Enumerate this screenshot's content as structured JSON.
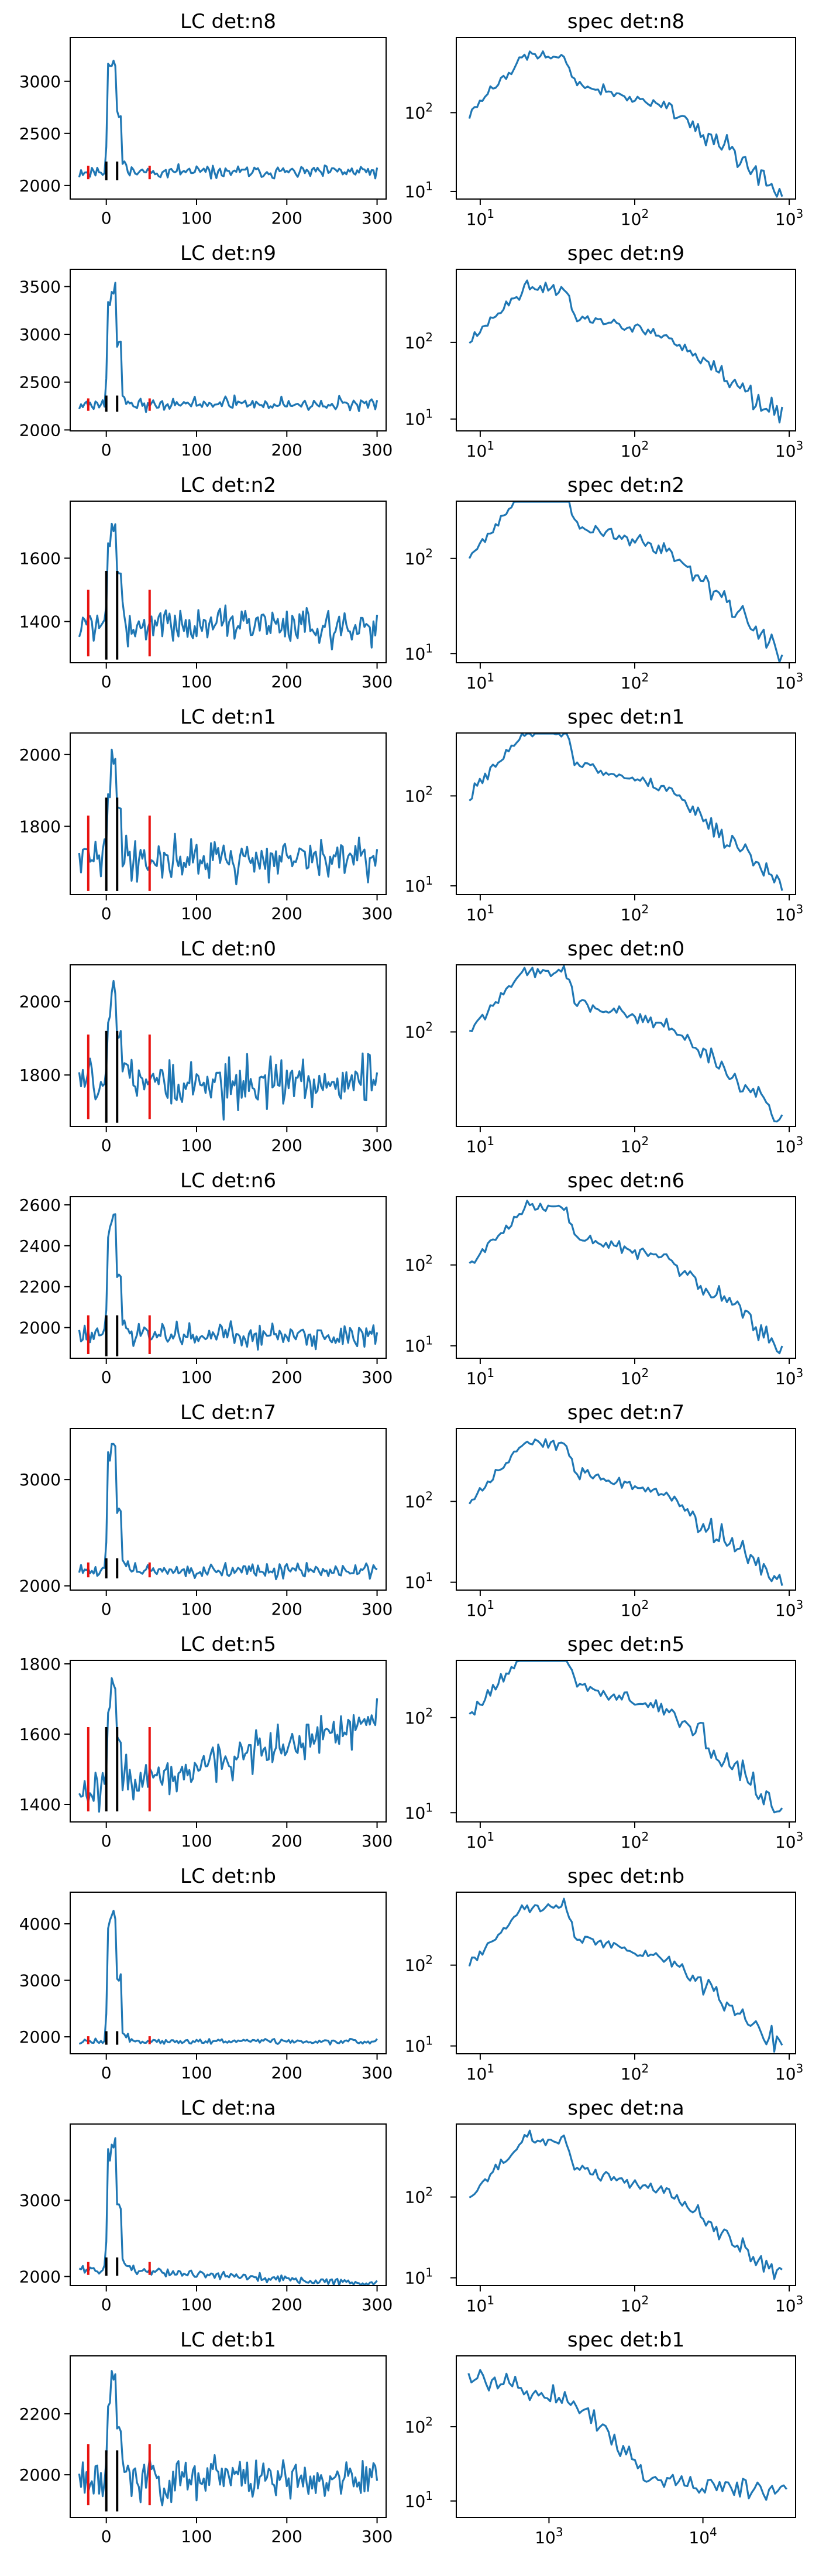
{
  "chart_data": [
    {
      "type": "line",
      "title": "LC det:n8",
      "scale": "linear",
      "xlim": [
        -40,
        310
      ],
      "ylim": [
        1870,
        3420
      ],
      "xticks": [
        0,
        100,
        200,
        300
      ],
      "yticks": [
        2000,
        2500,
        3000
      ],
      "baseline": 2130,
      "noise": 40,
      "peak": 3320,
      "peak2": 3250,
      "marks": [
        {
          "t": -20,
          "c": "red",
          "y0": 2060,
          "y1": 2190
        },
        {
          "t": 0,
          "c": "black",
          "y0": 2050,
          "y1": 2230
        },
        {
          "t": 12,
          "c": "black",
          "y0": 2050,
          "y1": 2230
        },
        {
          "t": 48,
          "c": "red",
          "y0": 2060,
          "y1": 2190
        }
      ],
      "seed": 11
    },
    {
      "type": "line",
      "title": "spec det:n8",
      "scale": "log",
      "xlim": [
        7,
        1100
      ],
      "ylim": [
        8,
        900
      ],
      "xticks": [
        10,
        100,
        1000
      ],
      "yticks": [
        10,
        100
      ],
      "shape": "nai",
      "seed": 12
    },
    {
      "type": "line",
      "title": "LC det:n9",
      "scale": "linear",
      "xlim": [
        -40,
        310
      ],
      "ylim": [
        1990,
        3680
      ],
      "xticks": [
        0,
        100,
        200,
        300
      ],
      "yticks": [
        2000,
        2500,
        3000,
        3500
      ],
      "baseline": 2270,
      "noise": 45,
      "peak": 3580,
      "peak2": 3480,
      "marks": [
        {
          "t": -20,
          "c": "red",
          "y0": 2200,
          "y1": 2330
        },
        {
          "t": 0,
          "c": "black",
          "y0": 2190,
          "y1": 2360
        },
        {
          "t": 12,
          "c": "black",
          "y0": 2190,
          "y1": 2360
        },
        {
          "t": 48,
          "c": "red",
          "y0": 2200,
          "y1": 2330
        }
      ],
      "seed": 21
    },
    {
      "type": "line",
      "title": "spec det:n9",
      "scale": "log",
      "xlim": [
        7,
        1100
      ],
      "ylim": [
        7,
        900
      ],
      "xticks": [
        10,
        100,
        1000
      ],
      "yticks": [
        10,
        100
      ],
      "shape": "nai",
      "seed": 22
    },
    {
      "type": "line",
      "title": "LC det:n2",
      "scale": "linear",
      "xlim": [
        -40,
        310
      ],
      "ylim": [
        1270,
        1780
      ],
      "xticks": [
        0,
        100,
        200,
        300
      ],
      "yticks": [
        1400,
        1600
      ],
      "baseline": 1390,
      "noise": 40,
      "peak": 1730,
      "peak2": 1650,
      "marks": [
        {
          "t": -20,
          "c": "red",
          "y0": 1290,
          "y1": 1500
        },
        {
          "t": 0,
          "c": "black",
          "y0": 1280,
          "y1": 1560
        },
        {
          "t": 12,
          "c": "black",
          "y0": 1280,
          "y1": 1560
        },
        {
          "t": 48,
          "c": "red",
          "y0": 1290,
          "y1": 1500
        }
      ],
      "seed": 31
    },
    {
      "type": "line",
      "title": "spec det:n2",
      "scale": "log",
      "xlim": [
        7,
        1100
      ],
      "ylim": [
        8,
        400
      ],
      "xticks": [
        10,
        100,
        1000
      ],
      "yticks": [
        10,
        100
      ],
      "shape": "nai",
      "seed": 32
    },
    {
      "type": "line",
      "title": "LC det:n1",
      "scale": "linear",
      "xlim": [
        -40,
        310
      ],
      "ylim": [
        1610,
        2060
      ],
      "xticks": [
        0,
        100,
        200,
        300
      ],
      "yticks": [
        1800,
        2000
      ],
      "baseline": 1710,
      "noise": 40,
      "peak": 2020,
      "peak2": 1900,
      "marks": [
        {
          "t": -20,
          "c": "red",
          "y0": 1620,
          "y1": 1830
        },
        {
          "t": 0,
          "c": "black",
          "y0": 1620,
          "y1": 1880
        },
        {
          "t": 12,
          "c": "black",
          "y0": 1620,
          "y1": 1880
        },
        {
          "t": 48,
          "c": "red",
          "y0": 1620,
          "y1": 1830
        }
      ],
      "seed": 41
    },
    {
      "type": "line",
      "title": "spec det:n1",
      "scale": "log",
      "xlim": [
        7,
        1100
      ],
      "ylim": [
        8,
        500
      ],
      "xticks": [
        10,
        100,
        1000
      ],
      "yticks": [
        10,
        100
      ],
      "shape": "nai",
      "seed": 42
    },
    {
      "type": "line",
      "title": "LC det:n0",
      "scale": "linear",
      "xlim": [
        -40,
        310
      ],
      "ylim": [
        1660,
        2100
      ],
      "xticks": [
        0,
        100,
        200,
        300
      ],
      "yticks": [
        1800,
        2000
      ],
      "baseline": 1780,
      "noise": 50,
      "peak": 2060,
      "peak2": 1960,
      "marks": [
        {
          "t": -20,
          "c": "red",
          "y0": 1680,
          "y1": 1910
        },
        {
          "t": 0,
          "c": "black",
          "y0": 1670,
          "y1": 1920
        },
        {
          "t": 12,
          "c": "black",
          "y0": 1670,
          "y1": 1920
        },
        {
          "t": 48,
          "c": "red",
          "y0": 1680,
          "y1": 1910
        }
      ],
      "seed": 51
    },
    {
      "type": "line",
      "title": "spec det:n0",
      "scale": "log",
      "xlim": [
        7,
        1100
      ],
      "ylim": [
        8,
        600
      ],
      "xticks": [
        10,
        100,
        1000
      ],
      "yticks": [
        100
      ],
      "shape": "nai",
      "seed": 52
    },
    {
      "type": "line",
      "title": "LC det:n6",
      "scale": "linear",
      "xlim": [
        -40,
        310
      ],
      "ylim": [
        1850,
        2640
      ],
      "xticks": [
        0,
        100,
        200,
        300
      ],
      "yticks": [
        2000,
        2200,
        2400,
        2600
      ],
      "baseline": 1960,
      "noise": 40,
      "peak": 2570,
      "peak2": 2520,
      "marks": [
        {
          "t": -20,
          "c": "red",
          "y0": 1870,
          "y1": 2060
        },
        {
          "t": 0,
          "c": "black",
          "y0": 1860,
          "y1": 2060
        },
        {
          "t": 12,
          "c": "black",
          "y0": 1860,
          "y1": 2060
        },
        {
          "t": 48,
          "c": "red",
          "y0": 1870,
          "y1": 2060
        }
      ],
      "seed": 61
    },
    {
      "type": "line",
      "title": "spec det:n6",
      "scale": "log",
      "xlim": [
        7,
        1100
      ],
      "ylim": [
        7,
        700
      ],
      "xticks": [
        10,
        100,
        1000
      ],
      "yticks": [
        10,
        100
      ],
      "shape": "nai",
      "seed": 62
    },
    {
      "type": "line",
      "title": "LC det:n7",
      "scale": "linear",
      "xlim": [
        -40,
        310
      ],
      "ylim": [
        1960,
        3480
      ],
      "xticks": [
        0,
        100,
        200,
        300
      ],
      "yticks": [
        2000,
        3000
      ],
      "baseline": 2140,
      "noise": 45,
      "peak": 3390,
      "peak2": 3300,
      "marks": [
        {
          "t": -20,
          "c": "red",
          "y0": 2080,
          "y1": 2220
        },
        {
          "t": 0,
          "c": "black",
          "y0": 2070,
          "y1": 2260
        },
        {
          "t": 12,
          "c": "black",
          "y0": 2070,
          "y1": 2260
        },
        {
          "t": 48,
          "c": "red",
          "y0": 2080,
          "y1": 2220
        }
      ],
      "seed": 71
    },
    {
      "type": "line",
      "title": "spec det:n7",
      "scale": "log",
      "xlim": [
        7,
        1100
      ],
      "ylim": [
        8,
        800
      ],
      "xticks": [
        10,
        100,
        1000
      ],
      "yticks": [
        10,
        100
      ],
      "shape": "nai",
      "seed": 72
    },
    {
      "type": "line",
      "title": "LC det:n5",
      "scale": "linear",
      "xlim": [
        -40,
        310
      ],
      "ylim": [
        1350,
        1810
      ],
      "xticks": [
        0,
        100,
        200,
        300
      ],
      "yticks": [
        1400,
        1600,
        1800
      ],
      "baseline": 1440,
      "noise": 45,
      "peak": 1760,
      "peak2": 1680,
      "trend": 200,
      "marks": [
        {
          "t": -20,
          "c": "red",
          "y0": 1380,
          "y1": 1620
        },
        {
          "t": 0,
          "c": "black",
          "y0": 1380,
          "y1": 1620
        },
        {
          "t": 12,
          "c": "black",
          "y0": 1380,
          "y1": 1620
        },
        {
          "t": 48,
          "c": "red",
          "y0": 1380,
          "y1": 1620
        }
      ],
      "seed": 81
    },
    {
      "type": "line",
      "title": "spec det:n5",
      "scale": "log",
      "xlim": [
        7,
        1100
      ],
      "ylim": [
        8,
        400
      ],
      "xticks": [
        10,
        100,
        1000
      ],
      "yticks": [
        10,
        100
      ],
      "shape": "nai",
      "seed": 82
    },
    {
      "type": "line",
      "title": "LC det:nb",
      "scale": "linear",
      "xlim": [
        -40,
        310
      ],
      "ylim": [
        1700,
        4560
      ],
      "xticks": [
        0,
        100,
        200,
        300
      ],
      "yticks": [
        2000,
        3000,
        4000
      ],
      "baseline": 1920,
      "noise": 35,
      "peak": 4420,
      "peak2": 4200,
      "marks": [
        {
          "t": -20,
          "c": "red",
          "y0": 1870,
          "y1": 2010
        },
        {
          "t": 0,
          "c": "black",
          "y0": 1860,
          "y1": 2100
        },
        {
          "t": 12,
          "c": "black",
          "y0": 1860,
          "y1": 2100
        },
        {
          "t": 48,
          "c": "red",
          "y0": 1870,
          "y1": 2010
        }
      ],
      "seed": 91
    },
    {
      "type": "line",
      "title": "spec det:nb",
      "scale": "log",
      "xlim": [
        7,
        1100
      ],
      "ylim": [
        8,
        800
      ],
      "xticks": [
        10,
        100,
        1000
      ],
      "yticks": [
        10,
        100
      ],
      "shape": "nai",
      "seed": 92
    },
    {
      "type": "line",
      "title": "LC det:na",
      "scale": "linear",
      "xlim": [
        -40,
        310
      ],
      "ylim": [
        1880,
        4000
      ],
      "xticks": [
        0,
        100,
        200,
        300
      ],
      "yticks": [
        2000,
        3000
      ],
      "baseline": 2100,
      "noise": 40,
      "peak": 3850,
      "peak2": 3700,
      "decline": 200,
      "marks": [
        {
          "t": -20,
          "c": "red",
          "y0": 2020,
          "y1": 2190
        },
        {
          "t": 0,
          "c": "black",
          "y0": 2010,
          "y1": 2250
        },
        {
          "t": 12,
          "c": "black",
          "y0": 2010,
          "y1": 2250
        },
        {
          "t": 48,
          "c": "red",
          "y0": 2020,
          "y1": 2190
        }
      ],
      "seed": 101
    },
    {
      "type": "line",
      "title": "spec det:na",
      "scale": "log",
      "xlim": [
        7,
        1100
      ],
      "ylim": [
        8,
        800
      ],
      "xticks": [
        10,
        100,
        1000
      ],
      "yticks": [
        10,
        100
      ],
      "shape": "nai",
      "seed": 102
    },
    {
      "type": "line",
      "title": "LC det:b1",
      "scale": "linear",
      "xlim": [
        -40,
        310
      ],
      "ylim": [
        1860,
        2390
      ],
      "xticks": [
        0,
        100,
        200,
        300
      ],
      "yticks": [
        2000,
        2200
      ],
      "baseline": 1990,
      "noise": 50,
      "peak": 2350,
      "peak2": 2240,
      "marks": [
        {
          "t": -20,
          "c": "red",
          "y0": 1900,
          "y1": 2100
        },
        {
          "t": 0,
          "c": "black",
          "y0": 1880,
          "y1": 2080
        },
        {
          "t": 12,
          "c": "black",
          "y0": 1880,
          "y1": 2080
        },
        {
          "t": 48,
          "c": "red",
          "y0": 1900,
          "y1": 2100
        }
      ],
      "seed": 111
    },
    {
      "type": "line",
      "title": "spec det:b1",
      "scale": "log",
      "xlim": [
        250,
        40000
      ],
      "ylim": [
        6,
        900
      ],
      "xticks": [
        1000,
        10000
      ],
      "yticks": [
        10,
        100
      ],
      "shape": "bgo",
      "seed": 112
    }
  ]
}
